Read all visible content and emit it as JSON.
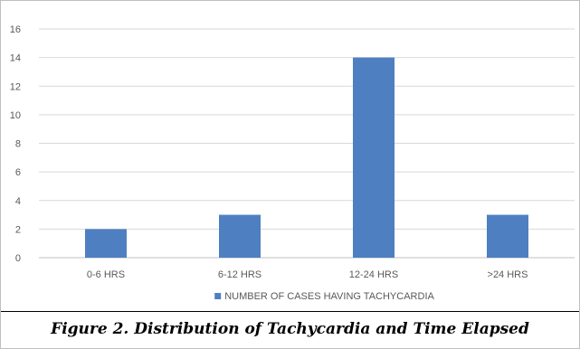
{
  "chart_data": {
    "type": "bar",
    "categories": [
      "0-6 HRS",
      "6-12 HRS",
      "12-24 HRS",
      ">24 HRS"
    ],
    "series": [
      {
        "name": "NUMBER OF CASES HAVING TACHYCARDIA",
        "values": [
          2,
          3,
          14,
          3
        ],
        "color": "#4e7fc1"
      }
    ],
    "y_ticks": [
      0,
      2,
      4,
      6,
      8,
      10,
      12,
      14,
      16
    ],
    "ylim": [
      0,
      16
    ],
    "grid": true,
    "legend_position": "bottom"
  },
  "caption": "Figure 2. Distribution of Tachycardia and Time Elapsed"
}
